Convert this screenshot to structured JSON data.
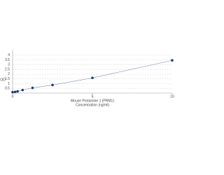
{
  "chart_data": {
    "type": "scatter",
    "x_label": "Mouse Protamine 1 (PRM1)",
    "x_label_2": "Concentration (ng/ml)",
    "y_label": "OD",
    "x": [
      0,
      0.156,
      0.312,
      0.625,
      1.25,
      2.5,
      5,
      10
    ],
    "values": [
      0.1,
      0.13,
      0.18,
      0.32,
      0.55,
      0.85,
      1.6,
      3.45
    ],
    "color": "#1f3f7a",
    "line_color": "#7f8fb5",
    "xlim": [
      0,
      10
    ],
    "xticks": [
      0,
      5,
      10
    ],
    "ylim": [
      0,
      4.5
    ],
    "yticks": [
      0.5,
      1,
      1.5,
      2,
      2.5,
      3,
      3.5,
      4
    ],
    "grid": true
  }
}
